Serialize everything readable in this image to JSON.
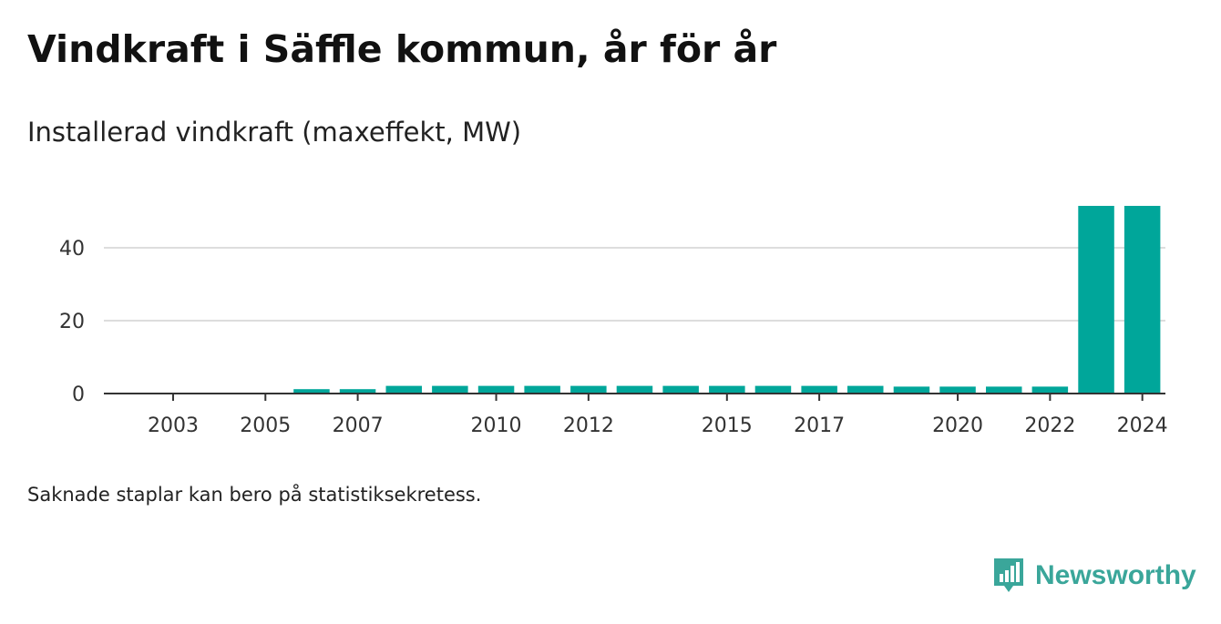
{
  "header": {
    "title": "Vindkraft i Säffle kommun, år för år",
    "subtitle": "Installerad vindkraft (maxeffekt, MW)"
  },
  "footer": {
    "note": "Saknade staplar kan bero på statistiksekretess.",
    "brand": "Newsworthy"
  },
  "colors": {
    "bar": "#00a69a",
    "grid": "#dddddd",
    "axis": "#333333",
    "brand": "#3aa69a"
  },
  "icons": {
    "brand_logo": "bar-chart-speech-bubble-icon"
  },
  "chart_data": {
    "type": "bar",
    "title": "Installerad vindkraft (maxeffekt, MW)",
    "xlabel": "",
    "ylabel": "",
    "x": [
      2002,
      2003,
      2004,
      2005,
      2006,
      2007,
      2008,
      2009,
      2010,
      2011,
      2012,
      2013,
      2014,
      2015,
      2016,
      2017,
      2018,
      2019,
      2020,
      2021,
      2022,
      2023,
      2024
    ],
    "values": [
      0,
      0,
      0,
      0,
      1.2,
      1.2,
      2.1,
      2.1,
      2.1,
      2.1,
      2.1,
      2.1,
      2.1,
      2.1,
      2.1,
      2.1,
      2.1,
      1.9,
      1.9,
      1.9,
      1.9,
      51.5,
      51.5
    ],
    "ylim": [
      0,
      50
    ],
    "yticks": [
      0,
      20,
      40
    ],
    "ytick_labels": [
      "0",
      "20",
      "40"
    ],
    "xticks": [
      2003,
      2005,
      2007,
      2010,
      2012,
      2015,
      2017,
      2020,
      2022,
      2024
    ],
    "xtick_labels": [
      "2003",
      "2005",
      "2007",
      "2010",
      "2012",
      "2015",
      "2017",
      "2020",
      "2022",
      "2024"
    ],
    "grid": true,
    "legend": "none"
  }
}
